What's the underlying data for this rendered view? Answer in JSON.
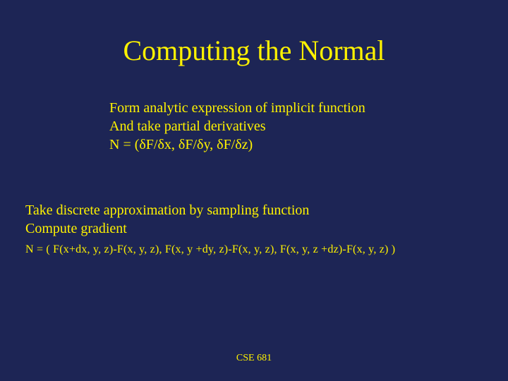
{
  "slide": {
    "background_color": "#1d2555",
    "text_color": "#fef200",
    "title": "Computing the Normal",
    "title_fontsize": 40,
    "block1": {
      "line1": "Form analytic expression of implicit function",
      "line2": "And take partial derivatives",
      "line3": "N = (δF/δx, δF/δy, δF/δz)",
      "fontsize": 20
    },
    "block2": {
      "line1": "Take discrete approximation by sampling function",
      "line2": "Compute gradient",
      "fontsize": 20
    },
    "block3": {
      "line1": "N = ( F(x+dx, y, z)-F(x, y, z),  F(x, y +dy, z)-F(x, y, z),   F(x, y, z +dz)-F(x, y, z) )",
      "fontsize": 16
    },
    "footer": "CSE 681",
    "footer_fontsize": 14,
    "font_family": "Times New Roman"
  }
}
